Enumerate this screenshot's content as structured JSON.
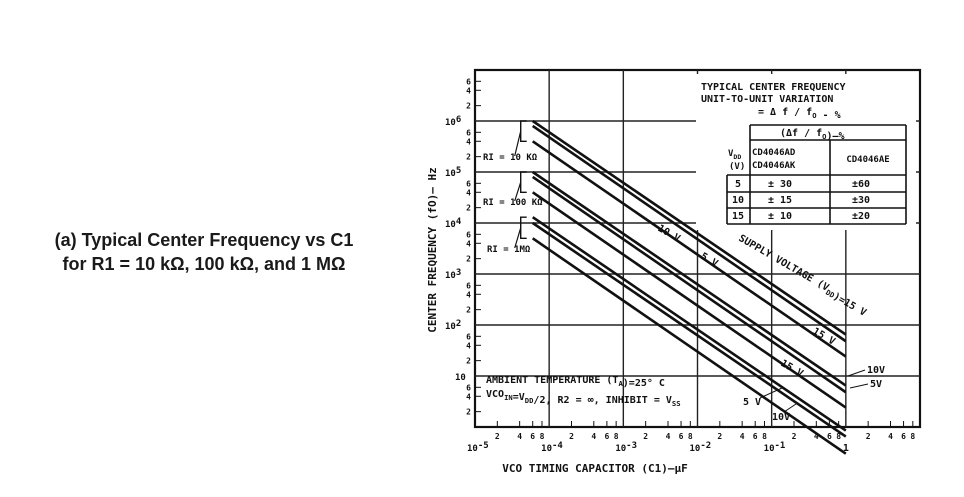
{
  "caption": {
    "line1": "(a) Typical Center Frequency vs C1",
    "line2": "for R1 = 10 kΩ, 100 kΩ, and 1 MΩ"
  },
  "chart_data": {
    "type": "line",
    "xlabel": "VCO  TIMING  CAPACITOR  (C1)—μF",
    "ylabel": "CENTER  FREQUENCY  (fO)— Hz",
    "x_scale": "log",
    "y_scale": "log",
    "xlim": [
      1e-05,
      10
    ],
    "ylim": [
      1,
      10000000
    ],
    "grid": true,
    "x_decade_labels": [
      {
        "base": "10",
        "exp": "-5",
        "v": -5
      },
      {
        "base": "10",
        "exp": "-4",
        "v": -4
      },
      {
        "base": "10",
        "exp": "-3",
        "v": -3
      },
      {
        "base": "10",
        "exp": "-2",
        "v": -2
      },
      {
        "base": "10",
        "exp": "-1",
        "v": -1
      },
      {
        "base": "1",
        "exp": "",
        "v": 0
      }
    ],
    "x_minor_digits": [
      "2",
      "4",
      "6",
      "8"
    ],
    "y_decade_labels": [
      {
        "base": "10",
        "exp": "",
        "v": 1
      },
      {
        "base": "10",
        "exp": "2",
        "v": 2
      },
      {
        "base": "10",
        "exp": "3",
        "v": 3
      },
      {
        "base": "10",
        "exp": "4",
        "v": 4
      },
      {
        "base": "10",
        "exp": "5",
        "v": 5
      },
      {
        "base": "10",
        "exp": "6",
        "v": 6
      }
    ],
    "y_minor_digits": [
      "2",
      "4",
      "6"
    ],
    "series": [
      {
        "group": "R1 = 10 kΩ",
        "vdd": "15 V",
        "x": [
          6e-05,
          1
        ],
        "y": [
          1000000,
          65
        ]
      },
      {
        "group": "R1 = 10 kΩ",
        "vdd": "10 V",
        "x": [
          6e-05,
          1
        ],
        "y": [
          800000,
          48
        ]
      },
      {
        "group": "R1 = 10 kΩ",
        "vdd": "5 V",
        "x": [
          6e-05,
          1
        ],
        "y": [
          400000,
          24
        ]
      },
      {
        "group": "R1 = 100 kΩ",
        "vdd": "15 V",
        "x": [
          6e-05,
          1
        ],
        "y": [
          100000,
          6.5
        ]
      },
      {
        "group": "R1 = 100 kΩ",
        "vdd": "10 V",
        "x": [
          6e-05,
          1
        ],
        "y": [
          80000,
          4.8
        ]
      },
      {
        "group": "R1 = 100 kΩ",
        "vdd": "5 V",
        "x": [
          6e-05,
          1
        ],
        "y": [
          40000,
          2.4
        ]
      },
      {
        "group": "R1 = 1 MΩ",
        "vdd": "15 V",
        "x": [
          6e-05,
          1
        ],
        "y": [
          13000,
          0.85
        ]
      },
      {
        "group": "R1 = 1 MΩ",
        "vdd": "10 V",
        "x": [
          6e-05,
          1
        ],
        "y": [
          10000,
          0.65
        ]
      },
      {
        "group": "R1 = 1 MΩ",
        "vdd": "5 V",
        "x": [
          6e-05,
          1
        ],
        "y": [
          5000,
          0.3
        ]
      }
    ],
    "bracket_labels": [
      "RI = 10 KΩ",
      "RI = 100 KΩ",
      "RI = 1MΩ"
    ],
    "annotations": {
      "label_10v": "10 V",
      "label_5v": "5 V",
      "supply": "SUPPLY  VOLTAGE  (V",
      "supply_sub": "DD",
      "supply_end": ")=15 V",
      "r_15v_a": "15 V",
      "r_10v": "10V",
      "r_5v": "5V",
      "b_15v": "15 V",
      "b_5v": "5 V",
      "b_10v": "10V",
      "ambient": "AMBIENT  TEMPERATURE (T",
      "ambient_sub": "A",
      "ambient_end": ")=25° C",
      "vco_a": "VCO",
      "vco_sub1": "IN",
      "vco_b": "=V",
      "vco_sub2": "DD",
      "vco_c": "/2, R2 = ∞, INHIBIT = V",
      "vco_sub3": "SS"
    },
    "table": {
      "title_line1": "TYPICAL  CENTER  FREQUENCY",
      "title_line2": "UNIT-TO-UNIT  VARIATION",
      "title_line3": "= Δ f / f",
      "title_line3_sub": "O",
      "title_line3_end": " - %",
      "group_header": "(Δf / f",
      "group_header_sub": "O",
      "group_header_end": ")—%",
      "vdd_header_line1": "V",
      "vdd_header_sub": "DD",
      "vdd_header_line2": "(V)",
      "col1_line1": "CD4046AD",
      "col1_line2": "CD4046AK",
      "col2": "CD4046AE",
      "rows": [
        {
          "vdd": "5",
          "ad_ak": "± 30",
          "ae": "±60"
        },
        {
          "vdd": "10",
          "ad_ak": "± 15",
          "ae": "±30"
        },
        {
          "vdd": "15",
          "ad_ak": "± 10",
          "ae": "±20"
        }
      ]
    }
  }
}
